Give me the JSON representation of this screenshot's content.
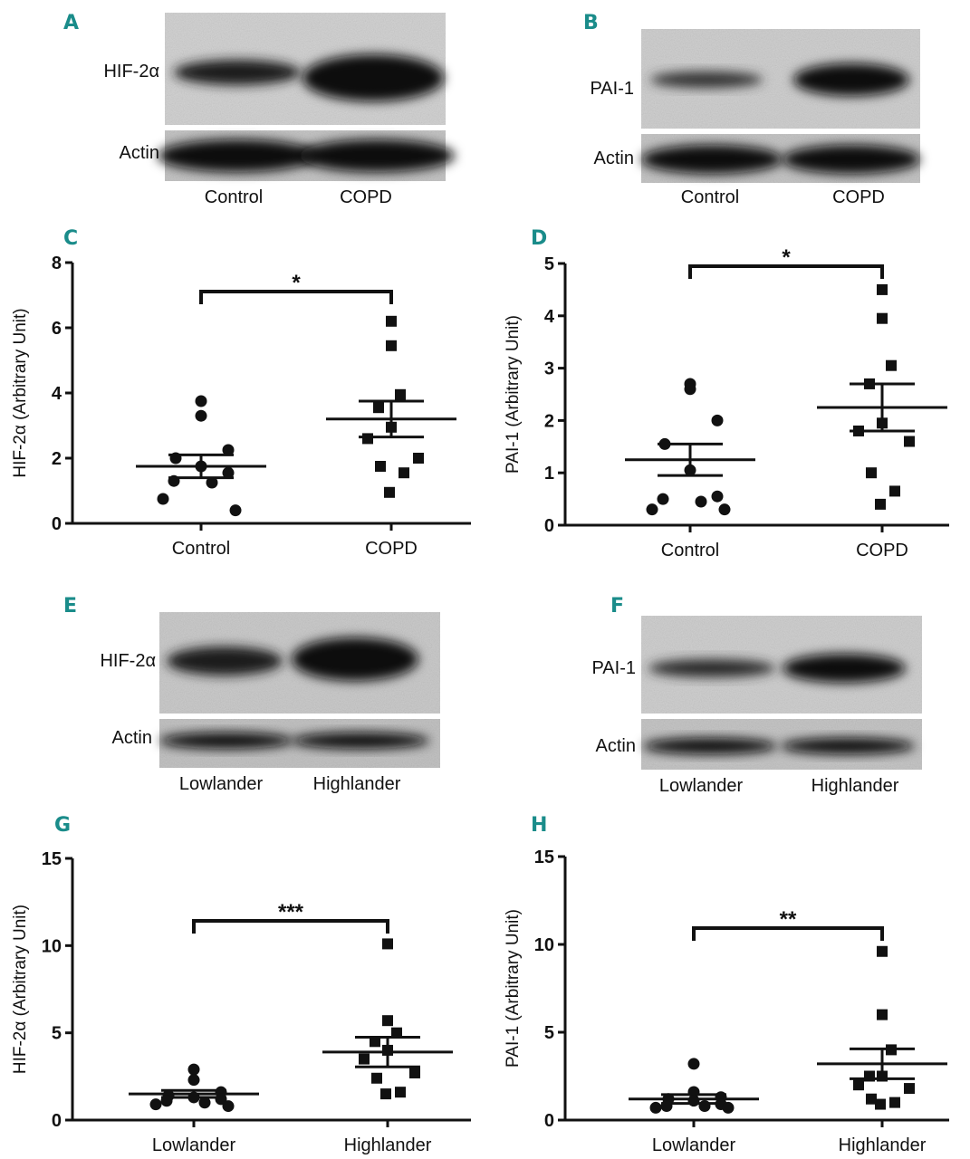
{
  "panels": {
    "A": "A",
    "B": "B",
    "C": "C",
    "D": "D",
    "E": "E",
    "F": "F",
    "G": "G",
    "H": "H"
  },
  "blots": {
    "A": {
      "protein": "HIF-2α",
      "loading": "Actin",
      "lanes": [
        "Control",
        "COPD"
      ]
    },
    "B": {
      "protein": "PAI-1",
      "loading": "Actin",
      "lanes": [
        "Control",
        "COPD"
      ]
    },
    "E": {
      "protein": "HIF-2α",
      "loading": "Actin",
      "lanes": [
        "Lowlander",
        "Highlander"
      ]
    },
    "F": {
      "protein": "PAI-1",
      "loading": "Actin",
      "lanes": [
        "Lowlander",
        "Highlander"
      ]
    }
  },
  "chart_data": [
    {
      "panel": "C",
      "type": "scatter",
      "ylabel": "HIF-2α (Arbitrary Unit)",
      "ylim": [
        0,
        8
      ],
      "yticks": [
        "0",
        "2",
        "4",
        "6",
        "8"
      ],
      "categories": [
        "Control",
        "COPD"
      ],
      "significance": "*",
      "series": [
        {
          "name": "Control",
          "marker": "circle",
          "values": [
            3.75,
            3.3,
            2.25,
            2.0,
            1.75,
            1.55,
            1.3,
            1.25,
            0.75,
            0.4
          ],
          "mean": 1.75,
          "sem": 0.35
        },
        {
          "name": "COPD",
          "marker": "square",
          "values": [
            6.2,
            5.45,
            3.95,
            3.55,
            2.95,
            2.6,
            2.0,
            1.75,
            1.55,
            0.95
          ],
          "mean": 3.2,
          "sem": 0.55
        }
      ]
    },
    {
      "panel": "D",
      "type": "scatter",
      "ylabel": "PAI-1 (Arbitrary Unit)",
      "ylim": [
        0,
        5
      ],
      "yticks": [
        "0",
        "1",
        "2",
        "3",
        "4",
        "5"
      ],
      "categories": [
        "Control",
        "COPD"
      ],
      "significance": "*",
      "series": [
        {
          "name": "Control",
          "marker": "circle",
          "values": [
            2.7,
            2.6,
            2.0,
            1.55,
            1.05,
            0.55,
            0.5,
            0.45,
            0.3,
            0.3
          ],
          "mean": 1.25,
          "sem": 0.3
        },
        {
          "name": "COPD",
          "marker": "square",
          "values": [
            4.5,
            3.95,
            3.05,
            2.7,
            1.95,
            1.8,
            1.6,
            1.0,
            0.65,
            0.4
          ],
          "mean": 2.25,
          "sem": 0.45
        }
      ]
    },
    {
      "panel": "G",
      "type": "scatter",
      "ylabel": "HIF-2α (Arbitrary Unit)",
      "ylim": [
        0,
        15
      ],
      "yticks": [
        "0",
        "5",
        "10",
        "15"
      ],
      "categories": [
        "Lowlander",
        "Highlander"
      ],
      "significance": "***",
      "series": [
        {
          "name": "Lowlander",
          "marker": "circle",
          "values": [
            2.9,
            2.3,
            1.6,
            1.4,
            1.3,
            1.2,
            1.1,
            1.0,
            0.9,
            0.8
          ],
          "mean": 1.5,
          "sem": 0.2
        },
        {
          "name": "Highlander",
          "marker": "square",
          "values": [
            10.1,
            5.7,
            5.0,
            4.5,
            4.0,
            3.5,
            2.7,
            2.4,
            1.6,
            1.5
          ],
          "mean": 3.9,
          "sem": 0.85
        }
      ]
    },
    {
      "panel": "H",
      "type": "scatter",
      "ylabel": "PAI-1 (Arbitrary Unit)",
      "ylim": [
        0,
        15
      ],
      "yticks": [
        "0",
        "5",
        "10",
        "15"
      ],
      "categories": [
        "Lowlander",
        "Highlander"
      ],
      "significance": "**",
      "series": [
        {
          "name": "Lowlander",
          "marker": "circle",
          "values": [
            3.2,
            1.6,
            1.3,
            1.2,
            1.1,
            0.9,
            0.8,
            0.8,
            0.7,
            0.7
          ],
          "mean": 1.2,
          "sem": 0.25
        },
        {
          "name": "Highlander",
          "marker": "square",
          "values": [
            9.6,
            6.0,
            4.0,
            2.5,
            2.5,
            2.0,
            1.8,
            1.2,
            1.0,
            0.9
          ],
          "mean": 3.2,
          "sem": 0.85
        }
      ]
    }
  ]
}
